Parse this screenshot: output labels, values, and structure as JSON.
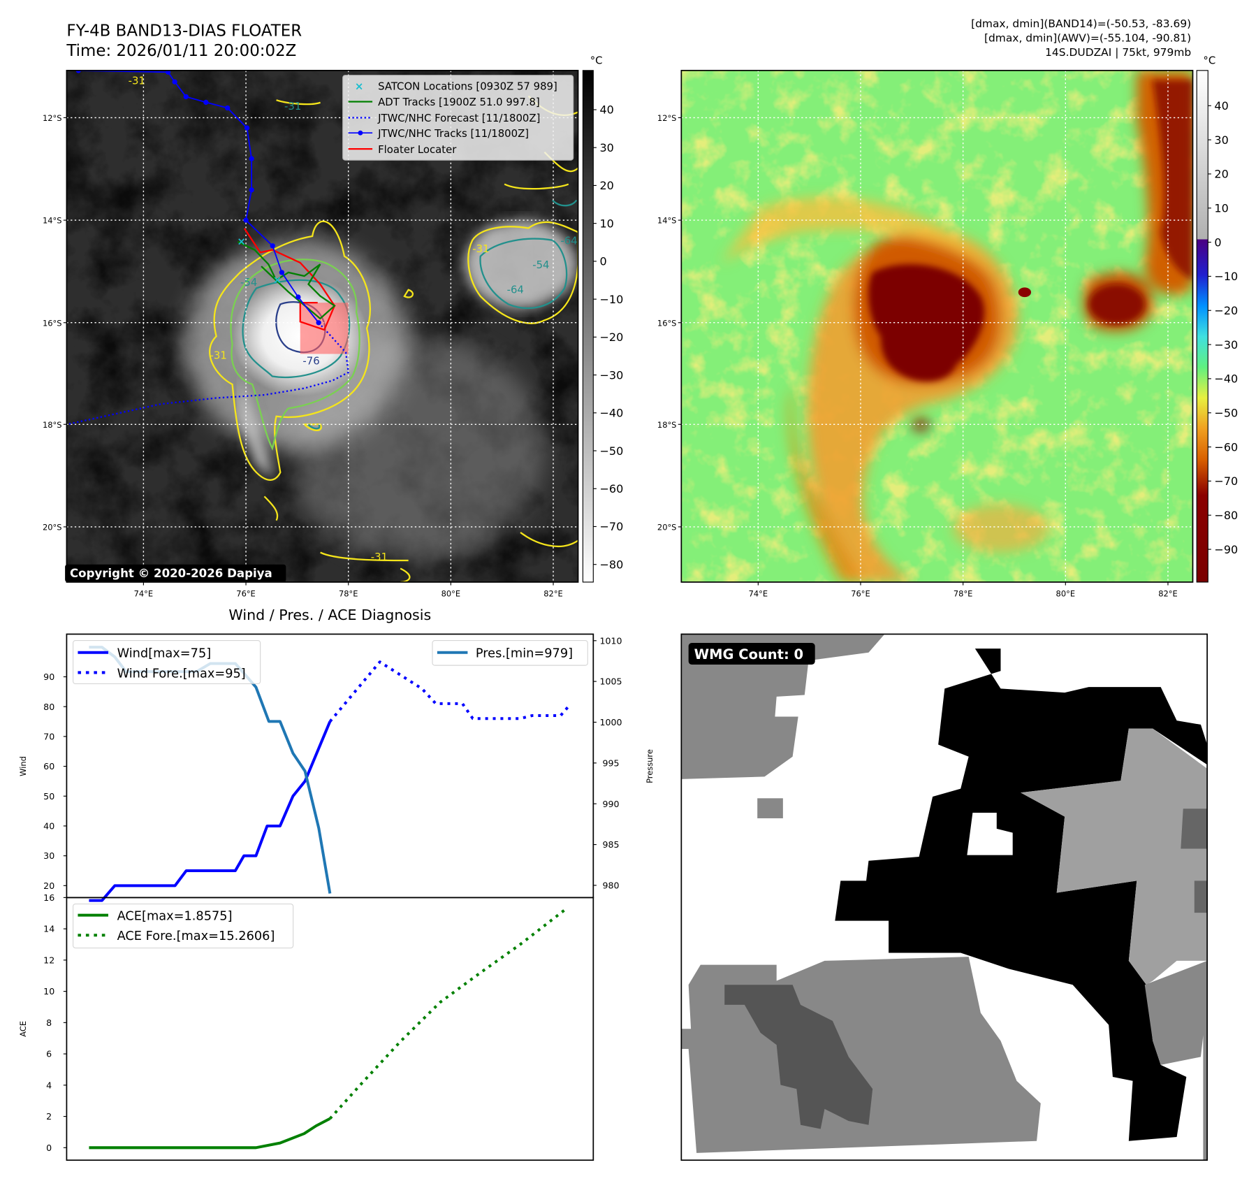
{
  "figure": {
    "title": "FY-4B BAND13-DIAS FLOATER",
    "time": "Time: 2026/01/11 20:00:02Z",
    "info_lines": [
      "[dmax, dmin](BAND14)=(-50.53, -83.69)",
      "[dmax, dmin](AWV)=(-55.104, -90.81)",
      "14S.DUDZAI | 75kt, 979mb"
    ],
    "copyright": "Copyright © 2020-2026 Dapiya",
    "diagnosis_title": "Wind / Pres. / ACE Diagnosis",
    "wmg_count": "WMG Count: 0"
  },
  "maps": {
    "lat_ticks": [
      "12°S",
      "14°S",
      "16°S",
      "18°S",
      "20°S"
    ],
    "lon_ticks": [
      "74°E",
      "76°E",
      "78°E",
      "80°E",
      "82°E"
    ],
    "legend": [
      "SATCON Locations [0930Z 57 989]",
      "ADT Tracks [1900Z 51.0 997.8]",
      "JTWC/NHC Forecast [11/1800Z]",
      "JTWC/NHC Tracks [11/1800Z]",
      "Floater Locater"
    ],
    "contour_labels": [
      "-31",
      "-31",
      "-31",
      "-54",
      "-64",
      "-64",
      "-54",
      "-76",
      "-31",
      "-31"
    ],
    "colors": {
      "satcon": "#17becf",
      "adt": "#008000",
      "jtwc": "#0000ff",
      "floater": "#ff0000",
      "contour_yellow": "#f5e51b",
      "contour_green": "#7ad151",
      "contour_teal": "#22908c",
      "contour_navy": "#2a3f8a"
    },
    "tracks": {
      "jtwc": [
        [
          72.73,
          -11.08
        ],
        [
          74.48,
          -11.11
        ],
        [
          74.61,
          -11.3
        ],
        [
          74.83,
          -11.59
        ],
        [
          75.22,
          -11.7
        ],
        [
          75.64,
          -11.81
        ],
        [
          76.02,
          -12.2
        ],
        [
          76.11,
          -12.8
        ],
        [
          76.11,
          -13.41
        ],
        [
          76.0,
          -14.0
        ],
        [
          76.52,
          -14.5
        ],
        [
          76.7,
          -15.02
        ],
        [
          77.02,
          -15.5
        ],
        [
          77.42,
          -16.0
        ]
      ],
      "forecast": [
        [
          77.42,
          -16.0
        ],
        [
          77.95,
          -16.58
        ],
        [
          78.0,
          -16.97
        ],
        [
          77.69,
          -17.13
        ],
        [
          77.14,
          -17.28
        ],
        [
          76.36,
          -17.41
        ],
        [
          75.42,
          -17.47
        ],
        [
          74.33,
          -17.59
        ],
        [
          72.53,
          -17.98
        ]
      ],
      "adt": [
        [
          75.84,
          -14.42
        ],
        [
          76.17,
          -14.58
        ],
        [
          76.44,
          -14.86
        ],
        [
          76.59,
          -15.17
        ],
        [
          76.83,
          -15.02
        ],
        [
          77.14,
          -15.09
        ],
        [
          77.45,
          -14.86
        ],
        [
          77.22,
          -15.25
        ],
        [
          77.45,
          -15.48
        ],
        [
          77.73,
          -15.67
        ],
        [
          77.45,
          -15.92
        ],
        [
          76.83,
          -15.4
        ],
        [
          76.3,
          -14.9
        ]
      ],
      "floater": [
        [
          75.97,
          -14.16
        ],
        [
          76.28,
          -14.63
        ],
        [
          76.52,
          -14.58
        ],
        [
          77.06,
          -14.83
        ],
        [
          77.45,
          -15.25
        ],
        [
          77.73,
          -15.67
        ],
        [
          77.53,
          -16.14
        ],
        [
          77.06,
          -15.98
        ],
        [
          77.06,
          -15.61
        ],
        [
          77.4,
          -15.61
        ]
      ],
      "satcon": [
        [
          75.89,
          -14.42
        ],
        [
          76.59,
          -15.17
        ]
      ],
      "floater_box": {
        "lon": [
          77.06,
          78.0
        ],
        "lat": [
          -15.61,
          -16.61
        ]
      }
    },
    "colorbar_left": {
      "unit": "°C",
      "ticks": [
        "40",
        "30",
        "20",
        "10",
        "0",
        "−10",
        "−20",
        "−30",
        "−40",
        "−50",
        "−60",
        "−70",
        "−80"
      ]
    },
    "colorbar_right": {
      "unit": "°C",
      "ticks": [
        "40",
        "30",
        "20",
        "10",
        "0",
        "−10",
        "−20",
        "−30",
        "−40",
        "−50",
        "−60",
        "−70",
        "−80",
        "−90"
      ]
    }
  },
  "chart_data": [
    {
      "type": "line",
      "title": "Wind / Pres. / ACE Diagnosis",
      "xlabel": "",
      "ylabel": "Wind",
      "ylabel_right": "Pressure",
      "xlim": [
        -2.6,
        58.6
      ],
      "ylim": [
        16,
        104.3
      ],
      "ylim_right": [
        978.5,
        1010.8
      ],
      "yticks": [
        20,
        30,
        40,
        50,
        60,
        70,
        80,
        90
      ],
      "yticks_right": [
        980,
        985,
        990,
        995,
        1000,
        1005,
        1010
      ],
      "legend_left": [
        "Wind[max=75]",
        "Wind Fore.[max=95]"
      ],
      "legend_right": [
        "Pres.[min=979]"
      ],
      "series": [
        {
          "name": "Wind[max=75]",
          "style": "solid",
          "color": "#0000ff",
          "axis": "left",
          "x": [
            0,
            1.5,
            3,
            10,
            11.3,
            17,
            18,
            19.4,
            20.7,
            22.2,
            23.7,
            25.1,
            28
          ],
          "y": [
            15,
            15,
            20,
            20,
            25,
            25,
            30,
            30,
            40,
            40,
            50,
            55,
            75
          ]
        },
        {
          "name": "Wind Fore.[max=95]",
          "style": "dotted",
          "color": "#0000ff",
          "axis": "left",
          "x": [
            28,
            33.8,
            38.7,
            40.3,
            43.4,
            44.6,
            50.1,
            51.5,
            54.8,
            55.7
          ],
          "y": [
            75,
            95,
            86,
            81,
            81,
            76,
            76,
            77,
            77,
            80
          ]
        },
        {
          "name": "Pres.[min=979]",
          "style": "solid",
          "color": "#1f77b4",
          "axis": "right",
          "x": [
            0,
            1.5,
            3,
            4.3,
            12.5,
            14.1,
            17,
            18,
            19.4,
            20.9,
            22.2,
            23.7,
            25.1,
            26.7,
            28
          ],
          "y": [
            1009.2,
            1009.2,
            1008,
            1006.2,
            1006.2,
            1007.2,
            1007.2,
            1006,
            1004.3,
            1000.1,
            1000.1,
            996.2,
            994,
            987,
            979
          ]
        }
      ]
    },
    {
      "type": "line",
      "xlabel": "",
      "ylabel": "ACE",
      "xlim": [
        -2.6,
        58.6
      ],
      "ylim": [
        -0.8,
        16
      ],
      "yticks": [
        0,
        2,
        4,
        6,
        8,
        10,
        12,
        14,
        16
      ],
      "legend": [
        "ACE[max=1.8575]",
        "ACE Fore.[max=15.2606]"
      ],
      "series": [
        {
          "name": "ACE[max=1.8575]",
          "style": "solid",
          "color": "#008000",
          "x": [
            0,
            19.4,
            22.2,
            25,
            26.4,
            28
          ],
          "y": [
            0,
            0,
            0.3,
            0.9,
            1.4,
            1.8575
          ]
        },
        {
          "name": "ACE Fore.[max=15.2606]",
          "style": "dotted",
          "color": "#008000",
          "x": [
            28,
            31.5,
            36.2,
            40.8,
            45.5,
            50.1,
            55.4
          ],
          "y": [
            1.8575,
            4,
            6.8,
            9.3,
            11.2,
            13,
            15.2606
          ]
        }
      ]
    }
  ]
}
